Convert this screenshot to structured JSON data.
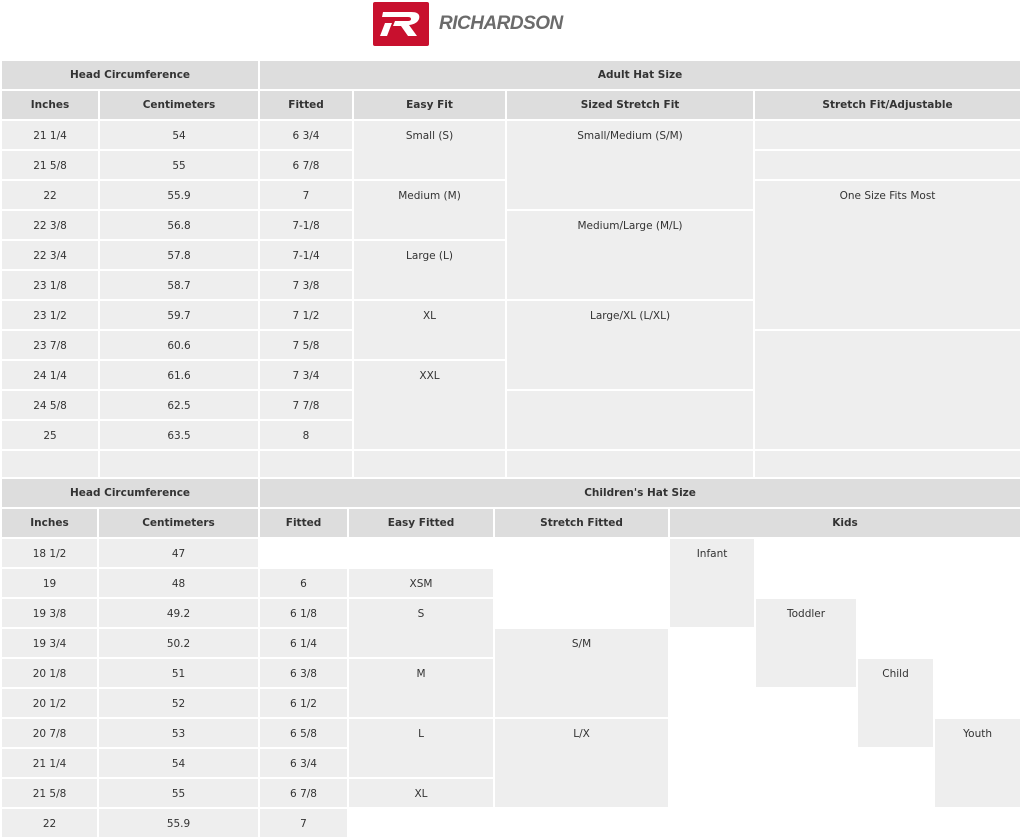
{
  "logo": {
    "text": "RICHARDSON",
    "brand_color": "#c8102e"
  },
  "adult": {
    "group_headers": [
      "Head Circumference",
      "Adult Hat Size"
    ],
    "columns": [
      "Inches",
      "Centimeters",
      "Fitted",
      "Easy Fit",
      "Sized Stretch Fit",
      "Stretch Fit/Adjustable"
    ],
    "inches": [
      "21 1/4",
      "21 5/8",
      "22",
      "22 3/8",
      "22 3/4",
      "23 1/8",
      "23 1/2",
      "23 7/8",
      "24 1/4",
      "24 5/8",
      "25"
    ],
    "centimeters": [
      "54",
      "55",
      "55.9",
      "56.8",
      "57.8",
      "58.7",
      "59.7",
      "60.6",
      "61.6",
      "62.5",
      "63.5"
    ],
    "fitted": [
      "6 3/4",
      "6 7/8",
      "7",
      "7-1/8",
      "7-1/4",
      "7 3/8",
      "7 1/2",
      "7 5/8",
      "7 3/4",
      "7 7/8",
      "8"
    ],
    "easy_fit": [
      "Small (S)",
      "Medium (M)",
      "Large (L)",
      "XL",
      "XXL"
    ],
    "sized_stretch_fit": [
      "Small/Medium (S/M)",
      "Medium/Large (M/L)",
      "Large/XL (L/XL)"
    ],
    "stretch_fit_adjustable": "One Size Fits Most"
  },
  "children": {
    "group_headers": [
      "Head Circumference",
      "Children's Hat Size"
    ],
    "columns": [
      "Inches",
      "Centimeters",
      "Fitted",
      "Easy Fitted",
      "Stretch Fitted",
      "Kids"
    ],
    "inches": [
      "18 1/2",
      "19",
      "19 3/8",
      "19 3/4",
      "20 1/8",
      "20 1/2",
      "20 7/8",
      "21 1/4",
      "21 5/8",
      "22"
    ],
    "centimeters": [
      "47",
      "48",
      "49.2",
      "50.2",
      "51",
      "52",
      "53",
      "54",
      "55",
      "55.9"
    ],
    "fitted": [
      "6",
      "6 1/8",
      "6 1/4",
      "6 3/8",
      "6 1/2",
      "6 5/8",
      "6 3/4",
      "6 7/8",
      "7"
    ],
    "easy_fitted": [
      "XSM",
      "S",
      "M",
      "L",
      "XL"
    ],
    "stretch_fitted": [
      "S/M",
      "L/X"
    ],
    "kids": [
      "Infant",
      "Toddler",
      "Child",
      "Youth"
    ]
  }
}
